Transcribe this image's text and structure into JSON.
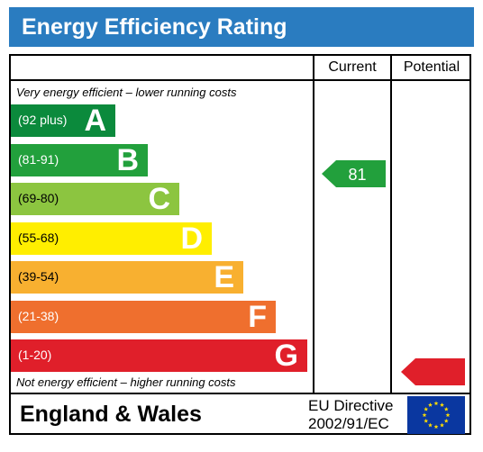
{
  "title": "Energy Efficiency Rating",
  "columns": {
    "current": "Current",
    "potential": "Potential"
  },
  "top_note": "Very energy efficient – lower running costs",
  "bottom_note": "Not energy efficient – higher running costs",
  "footer": {
    "country": "England & Wales",
    "directive_line1": "EU Directive",
    "directive_line2": "2002/91/EC"
  },
  "chart_data": {
    "type": "bar",
    "categories": [
      "A",
      "B",
      "C",
      "D",
      "E",
      "F",
      "G"
    ],
    "bands": [
      {
        "letter": "A",
        "range": "(92 plus)",
        "color": "#0b8a3c",
        "text_color": "#ffffff"
      },
      {
        "letter": "B",
        "range": "(81-91)",
        "color": "#22a03c",
        "text_color": "#ffffff"
      },
      {
        "letter": "C",
        "range": "(69-80)",
        "color": "#8cc540",
        "text_color": "#000000"
      },
      {
        "letter": "D",
        "range": "(55-68)",
        "color": "#ffee00",
        "text_color": "#000000"
      },
      {
        "letter": "E",
        "range": "(39-54)",
        "color": "#f8b030",
        "text_color": "#000000"
      },
      {
        "letter": "F",
        "range": "(21-38)",
        "color": "#ef6f2e",
        "text_color": "#ffffff"
      },
      {
        "letter": "G",
        "range": "(1-20)",
        "color": "#e01f2a",
        "text_color": "#ffffff"
      }
    ],
    "current": {
      "value": "81",
      "band": "B",
      "color": "#22a03c"
    },
    "potential": {
      "value": "",
      "band": "G",
      "color": "#e01f2a"
    }
  },
  "icons": {
    "flag": "eu-flag-icon"
  }
}
